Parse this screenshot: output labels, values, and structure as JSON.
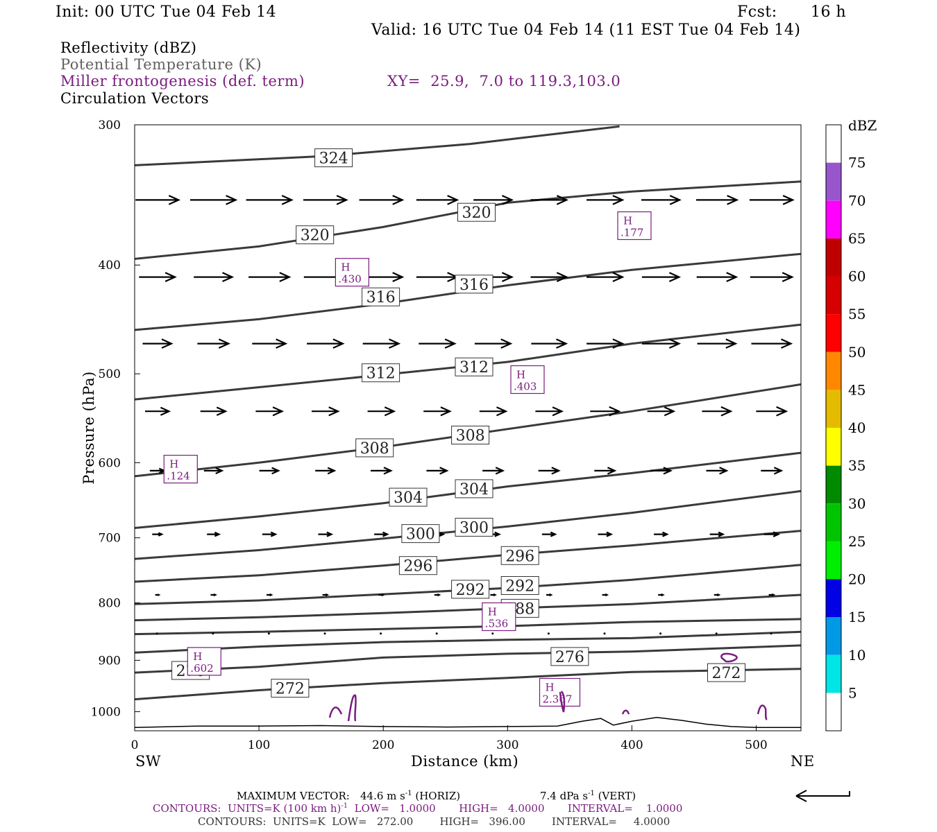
{
  "header": {
    "init": "Init: 00 UTC Tue 04 Feb 14",
    "fcst_label": "Fcst:",
    "fcst_value": "16 h",
    "valid": "Valid: 16 UTC Tue 04 Feb 14 (11 EST Tue 04 Feb 14)"
  },
  "fields": {
    "reflectivity": "Reflectivity (dBZ)",
    "potential_temperature": "Potential Temperature (K)",
    "frontogenesis": "Miller frontogenesis (def. term)",
    "xy": "XY=  25.9,  7.0 to 119.3,103.0",
    "circulation": "Circulation Vectors"
  },
  "colors": {
    "purple": "#7a1c80",
    "gray_text": "#606060",
    "theta_line": "#3a3a3a"
  },
  "chart_data": {
    "type": "line",
    "xlabel": "Distance (km)",
    "ylabel": "Pressure (hPa)",
    "xlim": [
      0,
      536
    ],
    "ylim": [
      1040,
      300
    ],
    "y_log_scale": true,
    "x_ticks": [
      "0",
      "100",
      "200",
      "300",
      "400",
      "500"
    ],
    "y_ticks": [
      "300",
      "400",
      "500",
      "600",
      "700",
      "800",
      "900",
      "1000"
    ],
    "x_end_labels": {
      "left": "SW",
      "right": "NE"
    },
    "theta_isentropes": [
      {
        "theta": 324,
        "x": [
          0,
          150,
          270,
          390
        ],
        "p": [
          326,
          320,
          312,
          301
        ]
      },
      {
        "theta": 320,
        "x": [
          0,
          100,
          200,
          300,
          400,
          536
        ],
        "p": [
          395,
          385,
          370,
          352,
          344,
          337
        ]
      },
      {
        "theta": 316,
        "x": [
          0,
          100,
          200,
          300,
          400,
          536
        ],
        "p": [
          457,
          447,
          433,
          417,
          404,
          391
        ]
      },
      {
        "theta": 312,
        "x": [
          0,
          100,
          200,
          300,
          400,
          536
        ],
        "p": [
          527,
          514,
          501,
          488,
          470,
          452
        ]
      },
      {
        "theta": 308,
        "x": [
          0,
          100,
          200,
          300,
          400,
          536
        ],
        "p": [
          617,
          600,
          581,
          560,
          540,
          511
        ]
      },
      {
        "theta": 304,
        "x": [
          0,
          100,
          200,
          300,
          400,
          536
        ],
        "p": [
          686,
          670,
          652,
          630,
          613,
          588
        ]
      },
      {
        "theta": 300,
        "x": [
          0,
          100,
          200,
          300,
          400,
          536
        ],
        "p": [
          731,
          718,
          701,
          684,
          665,
          636
        ]
      },
      {
        "theta": 296,
        "x": [
          0,
          100,
          200,
          300,
          400,
          536
        ],
        "p": [
          766,
          756,
          741,
          725,
          711,
          690
        ]
      },
      {
        "theta": 292,
        "x": [
          0,
          100,
          200,
          300,
          400,
          536
        ],
        "p": [
          802,
          796,
          786,
          776,
          763,
          740
        ]
      },
      {
        "theta": 288,
        "x": [
          0,
          100,
          200,
          300,
          400,
          536
        ],
        "p": [
          829,
          824,
          817,
          809,
          802,
          787
        ]
      },
      {
        "theta": 284,
        "x": [
          0,
          100,
          200,
          300,
          400,
          536
        ],
        "p": [
          853,
          849,
          844,
          839,
          832,
          827
        ]
      },
      {
        "theta": 280,
        "x": [
          0,
          100,
          200,
          300,
          400,
          536
        ],
        "p": [
          886,
          875,
          867,
          863,
          860,
          849
        ]
      },
      {
        "theta": 276,
        "x": [
          0,
          100,
          200,
          300,
          400,
          536
        ],
        "p": [
          923,
          912,
          895,
          888,
          884,
          873
        ]
      },
      {
        "theta": 272,
        "x": [
          0,
          100,
          200,
          300,
          400,
          470,
          536
        ],
        "p": [
          975,
          957,
          943,
          933,
          922,
          919,
          916
        ]
      }
    ],
    "terrain_surface": {
      "x": [
        0,
        50,
        100,
        150,
        200,
        250,
        300,
        340,
        360,
        375,
        385,
        400,
        420,
        440,
        460,
        480,
        500,
        520,
        536
      ],
      "p": [
        1033,
        1030,
        1030,
        1029,
        1031,
        1032,
        1031,
        1030,
        1020,
        1014,
        1028,
        1020,
        1012,
        1018,
        1026,
        1031,
        1033,
        1033,
        1033
      ]
    },
    "theta_labels": [
      {
        "text": "324",
        "x": 160,
        "p": 321
      },
      {
        "text": "320",
        "x": 145,
        "p": 376
      },
      {
        "text": "320",
        "x": 275,
        "p": 359
      },
      {
        "text": "316",
        "x": 198,
        "p": 427
      },
      {
        "text": "316",
        "x": 273,
        "p": 416
      },
      {
        "text": "312",
        "x": 198,
        "p": 499
      },
      {
        "text": "312",
        "x": 273,
        "p": 493
      },
      {
        "text": "308",
        "x": 193,
        "p": 582
      },
      {
        "text": "308",
        "x": 270,
        "p": 567
      },
      {
        "text": "304",
        "x": 220,
        "p": 644
      },
      {
        "text": "304",
        "x": 273,
        "p": 633
      },
      {
        "text": "300",
        "x": 230,
        "p": 694
      },
      {
        "text": "300",
        "x": 273,
        "p": 685
      },
      {
        "text": "296",
        "x": 228,
        "p": 741
      },
      {
        "text": "296",
        "x": 310,
        "p": 726
      },
      {
        "text": "292",
        "x": 270,
        "p": 778
      },
      {
        "text": "292",
        "x": 310,
        "p": 772
      },
      {
        "text": "288",
        "x": 310,
        "p": 809
      },
      {
        "text": "276",
        "x": 45,
        "p": 919
      },
      {
        "text": "276",
        "x": 350,
        "p": 893
      },
      {
        "text": "272",
        "x": 125,
        "p": 953
      },
      {
        "text": "272",
        "x": 476,
        "p": 923
      }
    ],
    "frontogenesis_maxima": [
      {
        "label": "H",
        "value": ".177",
        "x": 402,
        "p": 369
      },
      {
        "label": "H",
        "value": ".430",
        "x": 175,
        "p": 406
      },
      {
        "label": "H",
        "value": ".403",
        "x": 316,
        "p": 506
      },
      {
        "label": "H",
        "value": ".124",
        "x": 37,
        "p": 608
      },
      {
        "label": "H",
        "value": ".536",
        "x": 293,
        "p": 823
      },
      {
        "label": "H",
        "value": ".602",
        "x": 56,
        "p": 902
      },
      {
        "label": "H",
        "value": "2.367",
        "x": 342,
        "p": 961
      }
    ],
    "circulation_vectors": {
      "x": [
        18,
        63,
        108,
        153,
        198,
        243,
        288,
        333,
        378,
        423,
        468,
        512
      ],
      "levels": [
        {
          "p": 350,
          "u": [
            36,
            38,
            38,
            36,
            36,
            34,
            32,
            30,
            30,
            32,
            34,
            36
          ]
        },
        {
          "p": 410,
          "u": [
            30,
            32,
            34,
            35,
            36,
            34,
            32,
            30,
            30,
            31,
            33,
            35
          ]
        },
        {
          "p": 470,
          "u": [
            24,
            26,
            28,
            30,
            30,
            30,
            30,
            29,
            30,
            31,
            32,
            33
          ]
        },
        {
          "p": 540,
          "u": [
            20,
            21,
            22,
            22,
            22,
            22,
            22,
            22,
            24,
            22,
            24,
            25
          ]
        },
        {
          "p": 610,
          "u": [
            12,
            15,
            16,
            16,
            17,
            17,
            17,
            17,
            17,
            17,
            17,
            17
          ]
        },
        {
          "p": 695,
          "u": [
            8,
            10,
            11,
            11,
            11,
            11,
            11,
            11,
            11,
            11,
            11,
            12
          ]
        },
        {
          "p": 787,
          "u": [
            3,
            4,
            4,
            4,
            4,
            4,
            4,
            4,
            4,
            4,
            4,
            4
          ]
        },
        {
          "p": 852,
          "u": [
            1,
            1,
            1,
            1,
            1,
            1,
            1,
            1,
            1,
            1,
            1,
            1
          ]
        }
      ]
    },
    "reflectivity_colorbar": {
      "title": "dBZ",
      "levels": [
        "5",
        "10",
        "15",
        "20",
        "25",
        "30",
        "35",
        "40",
        "45",
        "50",
        "55",
        "60",
        "65",
        "70",
        "75"
      ],
      "colors": [
        "#ffffff",
        "#00e5e5",
        "#0099e5",
        "#0000e5",
        "#00ee00",
        "#00c400",
        "#008a00",
        "#ffff00",
        "#e5bb00",
        "#ff8800",
        "#ff0000",
        "#d60000",
        "#c00000",
        "#ff00ff",
        "#9955cc",
        "#ffffff"
      ]
    }
  },
  "footer": {
    "max_vector_label": "MAXIMUM VECTOR:",
    "max_vector_horiz": "44.6 m s",
    "horiz_suffix": " (HORIZ)",
    "max_vector_vert": "7.4 dPa s",
    "vert_suffix": " (VERT)",
    "exponent": "-1",
    "contours_purple": "CONTOURS:  UNITS=K (100 km h)",
    "contours_purple_rest": "  LOW=   1.0000       HIGH=   4.0000       INTERVAL=    1.0000",
    "contours_gray": "CONTOURS:  UNITS=K  LOW=   272.00        HIGH=   396.00        INTERVAL=     4.0000"
  }
}
